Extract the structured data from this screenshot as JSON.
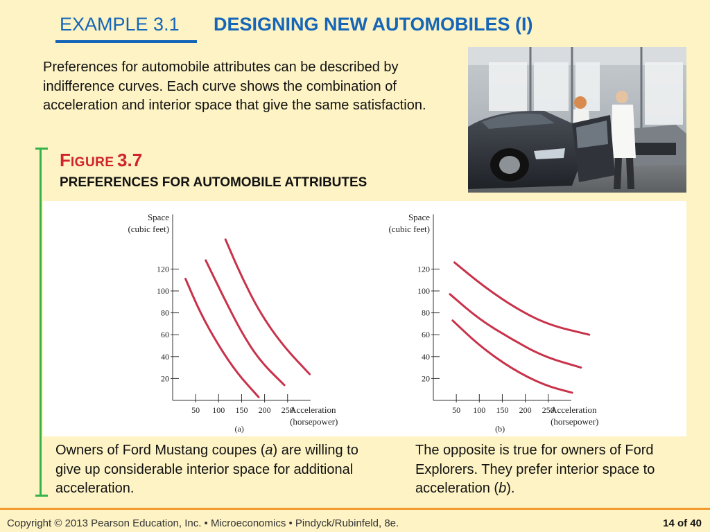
{
  "header": {
    "example_label": "EXAMPLE 3.1",
    "title": "DESIGNING NEW AUTOMOBILES (I)"
  },
  "intro_text": "Preferences for automobile attributes can be described by indifference curves. Each curve shows the combination of acceleration and interior space that give the same satisfaction.",
  "figure": {
    "label_first": "F",
    "label_small": "IGURE",
    "label_number": "3.7",
    "subtitle": "PREFERENCES FOR AUTOMOBILE ATTRIBUTES"
  },
  "captions": {
    "left_before": "Owners of Ford Mustang coupes (",
    "left_italic": "a",
    "left_after": ") are willing to give up considerable interior space for additional acceleration.",
    "right_before": "The opposite is true for owners of Ford Explorers. They prefer interior space to acceleration (",
    "right_italic": "b",
    "right_after": ")."
  },
  "footer": {
    "copyright": "Copyright © 2013  Pearson Education, Inc. •  Microeconomics  •  Pindyck/Rubinfeld, 8e.",
    "page": "14 of 40"
  },
  "colors": {
    "accent_blue": "#1565b8",
    "figure_red": "#d0232a",
    "curve_red": "#c8324a",
    "bracket_green": "#35b34a",
    "footer_orange": "#f29a2e",
    "background": "#fdf3c4"
  },
  "chart_data": [
    {
      "type": "line",
      "panel_label": "(a)",
      "ylabel_line1": "Space",
      "ylabel_line2": "(cubic feet)",
      "xlabel_line1": "Acceleration",
      "xlabel_line2": "(horsepower)",
      "x_ticks": [
        50,
        100,
        150,
        200,
        250
      ],
      "y_ticks": [
        20,
        40,
        60,
        80,
        100,
        120
      ],
      "xlim": [
        0,
        300
      ],
      "ylim": [
        0,
        170
      ],
      "series": [
        {
          "points": [
            [
              28,
              111
            ],
            [
              60,
              80
            ],
            [
              100,
              50
            ],
            [
              140,
              25
            ],
            [
              187,
              3
            ]
          ]
        },
        {
          "points": [
            [
              72,
              128
            ],
            [
              110,
              95
            ],
            [
              150,
              62
            ],
            [
              190,
              36
            ],
            [
              243,
              14
            ]
          ]
        },
        {
          "points": [
            [
              115,
              147
            ],
            [
              150,
              113
            ],
            [
              190,
              80
            ],
            [
              240,
              50
            ],
            [
              298,
              24
            ]
          ]
        }
      ]
    },
    {
      "type": "line",
      "panel_label": "(b)",
      "ylabel_line1": "Space",
      "ylabel_line2": "(cubic feet)",
      "xlabel_line1": "Acceleration",
      "xlabel_line2": "(horsepower)",
      "x_ticks": [
        50,
        100,
        150,
        200,
        250
      ],
      "y_ticks": [
        20,
        40,
        60,
        80,
        100,
        120
      ],
      "xlim": [
        0,
        300
      ],
      "ylim": [
        0,
        170
      ],
      "series": [
        {
          "points": [
            [
              42,
              73
            ],
            [
              100,
              50
            ],
            [
              170,
              29
            ],
            [
              240,
              14
            ],
            [
              302,
              7
            ]
          ]
        },
        {
          "points": [
            [
              36,
              97
            ],
            [
              100,
              74
            ],
            [
              170,
              56
            ],
            [
              240,
              40
            ],
            [
              321,
              30
            ]
          ]
        },
        {
          "points": [
            [
              46,
              126
            ],
            [
              110,
              104
            ],
            [
              180,
              84
            ],
            [
              250,
              69
            ],
            [
              339,
              60
            ]
          ]
        }
      ]
    }
  ]
}
